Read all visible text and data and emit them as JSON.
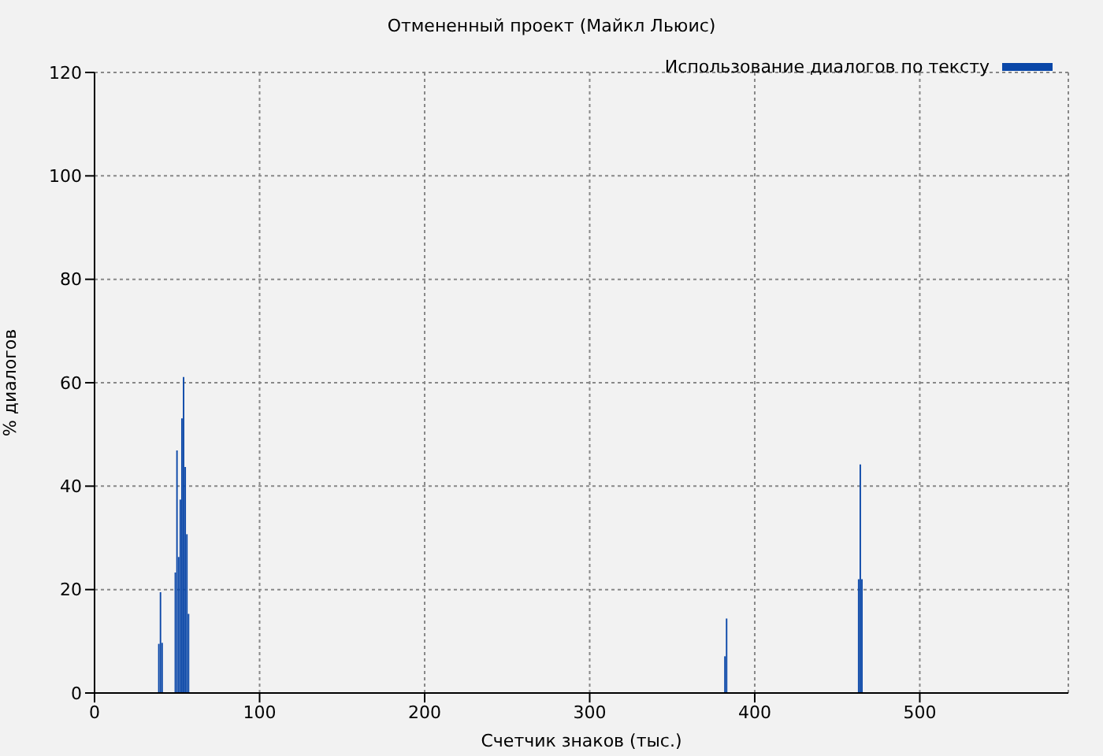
{
  "chart_data": {
    "type": "bar",
    "title": "Отмененный проект (Майкл Льюис)",
    "xlabel": "Счетчик знаков (тыс.)",
    "ylabel": "% диалогов",
    "x": [
      39,
      40,
      41,
      49,
      50,
      51,
      52,
      53,
      54,
      55,
      56,
      57,
      382,
      383,
      463,
      464,
      465
    ],
    "series": [
      {
        "name": "Использование диалогов по тексту",
        "color": "#0a47a8",
        "values": [
          9.5,
          19.5,
          9.7,
          23.3,
          46.9,
          26.3,
          37.4,
          53.1,
          61.1,
          43.7,
          30.7,
          15.3,
          7.1,
          14.4,
          22,
          44.2,
          22
        ]
      }
    ],
    "xlim": [
      0,
      590
    ],
    "xticks": [
      0,
      100,
      200,
      300,
      400,
      500
    ],
    "ylim": [
      0,
      120
    ],
    "yticks": [
      0,
      20,
      40,
      60,
      80,
      100,
      120
    ],
    "grid": true,
    "legend": "top right"
  }
}
